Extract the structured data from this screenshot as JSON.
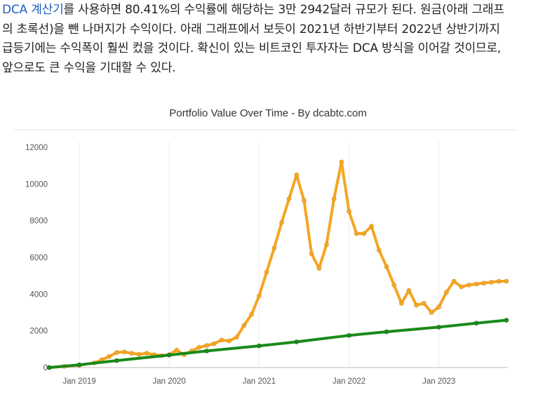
{
  "article": {
    "link_text": "DCA 계산기",
    "line1_rest": "를 사용하면 80.41%의 수익률에 해당하는 3만 2942달러 규모가 된다. 원금(아래 그래프",
    "line2": "의 초록선)을 뺀 나머지가 수익이다. 아래 그래프에서 보듯이 2021년 하반기부터 2022년 상반기까지",
    "line3": "급등기에는 수익폭이 훨씬 컸을 것이다. 확신이 있는 비트코인 투자자는 DCA 방식을 이어갈 것이므로,",
    "line4": "앞으로도 큰 수익을 기대할 수 있다."
  },
  "chart_data": {
    "type": "line",
    "title": "Portfolio Value Over Time - By dcabtc.com",
    "xlabel": "",
    "ylabel": "",
    "x_range": [
      "2018-09",
      "2023-10"
    ],
    "ylim": [
      0,
      12000
    ],
    "y_ticks": [
      0,
      2000,
      4000,
      6000,
      8000,
      10000,
      12000
    ],
    "x_ticks": [
      "Jan 2019",
      "Jan 2020",
      "Jan 2021",
      "Jan 2022",
      "Jan 2023"
    ],
    "grid": true,
    "legend": "none",
    "series": [
      {
        "color": "#f5a623",
        "points": [
          [
            "2018-09",
            0
          ],
          [
            "2018-11",
            60
          ],
          [
            "2019-01",
            130
          ],
          [
            "2019-03",
            250
          ],
          [
            "2019-04",
            420
          ],
          [
            "2019-05",
            600
          ],
          [
            "2019-06",
            820
          ],
          [
            "2019-07",
            850
          ],
          [
            "2019-08",
            780
          ],
          [
            "2019-09",
            720
          ],
          [
            "2019-10",
            780
          ],
          [
            "2019-11",
            700
          ],
          [
            "2019-12",
            650
          ],
          [
            "2020-01",
            700
          ],
          [
            "2020-02",
            950
          ],
          [
            "2020-03",
            700
          ],
          [
            "2020-04",
            900
          ],
          [
            "2020-05",
            1100
          ],
          [
            "2020-06",
            1200
          ],
          [
            "2020-07",
            1300
          ],
          [
            "2020-08",
            1500
          ],
          [
            "2020-09",
            1450
          ],
          [
            "2020-10",
            1650
          ],
          [
            "2020-11",
            2300
          ],
          [
            "2020-12",
            2900
          ],
          [
            "2021-01",
            3900
          ],
          [
            "2021-02",
            5200
          ],
          [
            "2021-03",
            6500
          ],
          [
            "2021-04",
            7900
          ],
          [
            "2021-05",
            9200
          ],
          [
            "2021-06",
            10500
          ],
          [
            "2021-07",
            9100
          ],
          [
            "2021-08",
            6200
          ],
          [
            "2021-09",
            5400
          ],
          [
            "2021-10",
            6700
          ],
          [
            "2021-11",
            9200
          ],
          [
            "2021-12",
            11200
          ],
          [
            "2022-01",
            8500
          ],
          [
            "2022-02",
            7300
          ],
          [
            "2022-03",
            7300
          ],
          [
            "2022-04",
            7700
          ],
          [
            "2022-05",
            6400
          ],
          [
            "2022-06",
            5500
          ],
          [
            "2022-07",
            4500
          ],
          [
            "2022-08",
            3500
          ],
          [
            "2022-09",
            4200
          ],
          [
            "2022-10",
            3400
          ],
          [
            "2022-11",
            3500
          ],
          [
            "2022-12",
            3000
          ],
          [
            "2023-01",
            3300
          ],
          [
            "2023-02",
            4100
          ],
          [
            "2023-03",
            4700
          ],
          [
            "2023-04",
            4400
          ],
          [
            "2023-05",
            4500
          ],
          [
            "2023-06",
            4550
          ],
          [
            "2023-07",
            4600
          ],
          [
            "2023-08",
            4650
          ],
          [
            "2023-09",
            4700
          ],
          [
            "2023-10",
            4700
          ]
        ]
      },
      {
        "color": "#1a8a1a",
        "points": [
          [
            "2018-09",
            0
          ],
          [
            "2019-01",
            150
          ],
          [
            "2019-06",
            380
          ],
          [
            "2020-01",
            680
          ],
          [
            "2020-06",
            900
          ],
          [
            "2021-01",
            1180
          ],
          [
            "2021-06",
            1400
          ],
          [
            "2022-01",
            1750
          ],
          [
            "2022-06",
            1950
          ],
          [
            "2023-01",
            2200
          ],
          [
            "2023-06",
            2420
          ],
          [
            "2023-10",
            2580
          ]
        ]
      }
    ]
  }
}
